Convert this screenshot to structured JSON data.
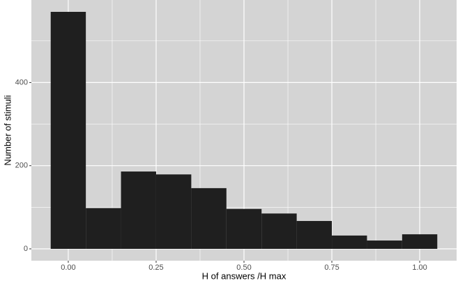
{
  "chart_data": {
    "type": "histogram",
    "x_label": "H of answers /H max",
    "y_label": "Number of stimuli",
    "bins": [
      -0.05,
      0.05,
      0.15,
      0.25,
      0.35,
      0.45,
      0.55,
      0.65,
      0.75,
      0.85,
      0.95,
      1.05
    ],
    "values": [
      570,
      98,
      186,
      179,
      146,
      96,
      85,
      67,
      32,
      20,
      35
    ],
    "color": "#1f1f1f",
    "panel_color": "#d4d4d4",
    "grid_color": "#ffffff",
    "grid": true,
    "xlim": [
      -0.105,
      1.105
    ],
    "ylim": [
      -28.5,
      598.5
    ],
    "xticks": [
      {
        "value": 0,
        "label": "0.00"
      },
      {
        "value": 0.25,
        "label": "0.25"
      },
      {
        "value": 0.5,
        "label": "0.50"
      },
      {
        "value": 0.75,
        "label": "0.75"
      },
      {
        "value": 1,
        "label": "1.00"
      }
    ],
    "x_minor_ticks": [
      0.125,
      0.375,
      0.625,
      0.875
    ],
    "yticks": [
      0,
      200,
      400
    ],
    "y_minor_ticks": [
      100,
      300,
      500
    ]
  }
}
